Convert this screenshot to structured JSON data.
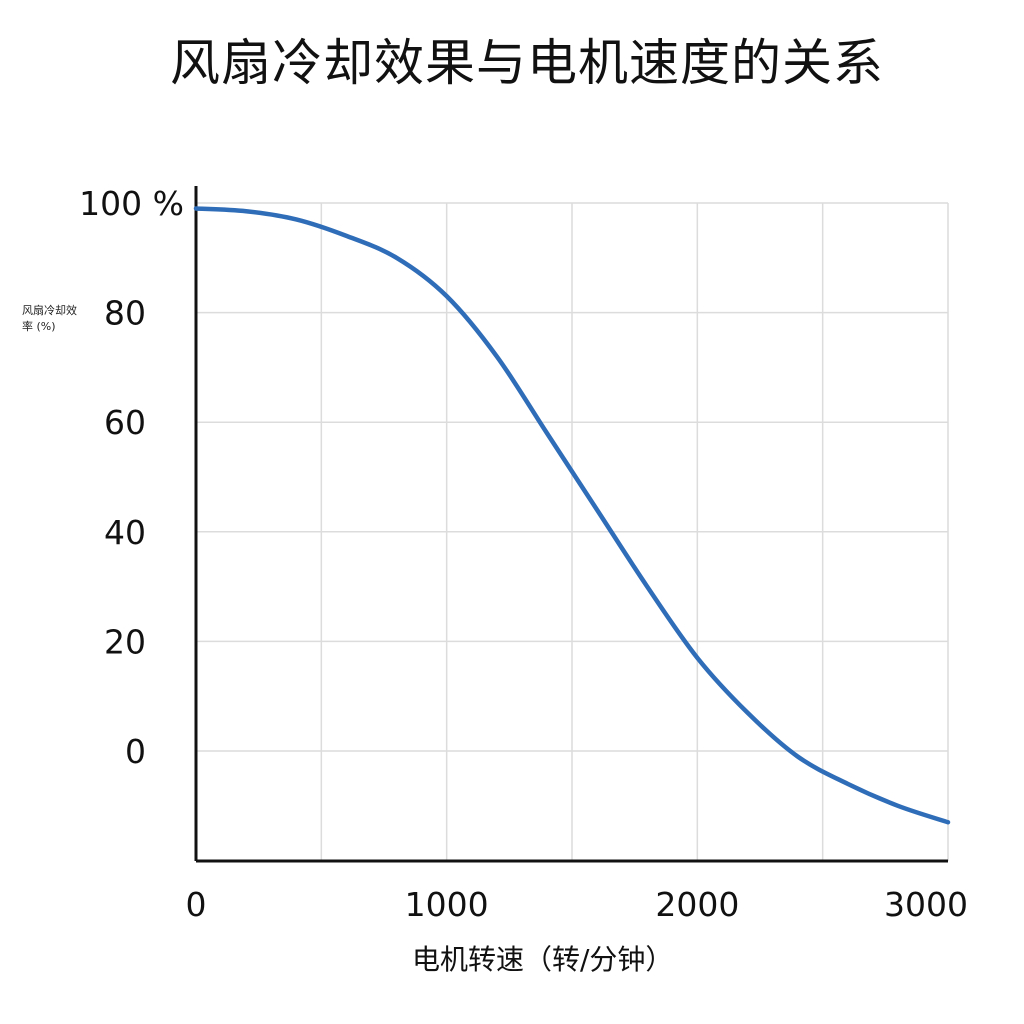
{
  "colors": {
    "curve": "#2f6db8",
    "grid": "#dcdcdc",
    "axis": "#111111"
  },
  "chart_data": {
    "type": "line",
    "title": "风扇冷却效果与电机速度的关系",
    "xlabel": "电机转速（转/分钟）",
    "ylabel": "风扇冷却效率 (%)",
    "xlim": [
      0,
      3000
    ],
    "ylim": [
      -20,
      100
    ],
    "xticks": [
      0,
      1000,
      2000,
      3000
    ],
    "xtick_labels": [
      "0",
      "1000",
      "2000",
      "3000"
    ],
    "yticks": [
      100,
      80,
      60,
      40,
      20,
      0
    ],
    "ytick_labels": [
      "100 %",
      "80",
      "60",
      "40",
      "20",
      "0"
    ],
    "grid": true,
    "series": [
      {
        "x": [
          0,
          200,
          400,
          600,
          800,
          1000,
          1200,
          1400,
          1600,
          1800,
          2000,
          2200,
          2400,
          2600,
          2800,
          3000
        ],
        "y": [
          99,
          98.5,
          97,
          94,
          90,
          83,
          72,
          58,
          44,
          30,
          17,
          7,
          -1,
          -6,
          -10,
          -13
        ]
      }
    ]
  }
}
